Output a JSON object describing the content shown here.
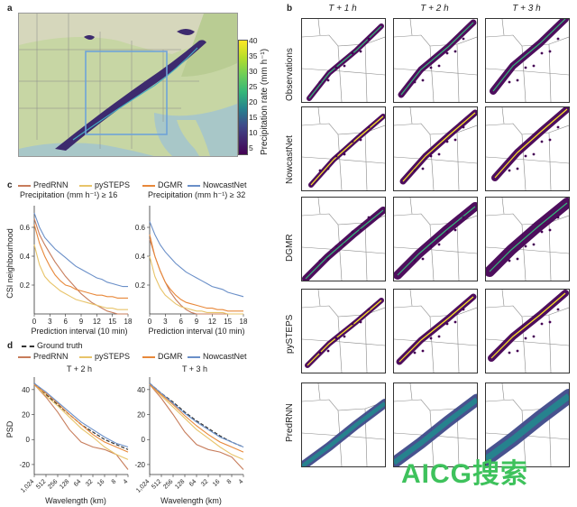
{
  "panel_labels": {
    "a": "a",
    "b": "b",
    "c": "c",
    "d": "d"
  },
  "colorbar": {
    "label": "Precipitation rate (mm h⁻¹)",
    "ticks": [
      "40",
      "35",
      "30",
      "25",
      "20",
      "15",
      "10",
      "5"
    ],
    "colors": [
      "#fde725",
      "#b5de2b",
      "#6ece58",
      "#35b779",
      "#1f9e89",
      "#26828e",
      "#31688e",
      "#3e4989",
      "#482878",
      "#440154"
    ]
  },
  "grid": {
    "columns": [
      "T + 1 h",
      "T + 2 h",
      "T + 3 h"
    ],
    "rows": [
      "Observations",
      "NowcastNet",
      "DGMR",
      "pySTEPS",
      "PredRNN"
    ]
  },
  "legend_c": {
    "items": [
      {
        "label": "PredRNN",
        "color": "#c77c5b"
      },
      {
        "label": "pySTEPS",
        "color": "#e8c46a"
      },
      {
        "label": "DGMR",
        "color": "#e8883a"
      },
      {
        "label": "NowcastNet",
        "color": "#6a8fc8"
      }
    ]
  },
  "legend_d": {
    "items": [
      {
        "label": "Ground truth",
        "color": "#333333",
        "dashed": true
      },
      {
        "label": "PredRNN",
        "color": "#c77c5b"
      },
      {
        "label": "pySTEPS",
        "color": "#e8c46a"
      },
      {
        "label": "DGMR",
        "color": "#e8883a"
      },
      {
        "label": "NowcastNet",
        "color": "#6a8fc8"
      }
    ]
  },
  "chart_data": [
    {
      "type": "line",
      "title": "Precipitation (mm h⁻¹) ≥ 16",
      "xlabel": "Prediction interval (10 min)",
      "ylabel": "CSI neighbourhood",
      "x": [
        0,
        1,
        2,
        3,
        4,
        5,
        6,
        7,
        8,
        9,
        10,
        11,
        12,
        13,
        14,
        15,
        16,
        17,
        18
      ],
      "xticks": [
        "0",
        "3",
        "6",
        "9",
        "12",
        "15",
        "18"
      ],
      "yticks": [
        "0.2",
        "0.4",
        "0.6"
      ],
      "xlim": [
        0,
        18
      ],
      "ylim": [
        0,
        0.75
      ],
      "series": [
        {
          "name": "PredRNN",
          "values": [
            0.66,
            0.55,
            0.48,
            0.42,
            0.36,
            0.31,
            0.26,
            0.22,
            0.18,
            0.14,
            0.11,
            0.08,
            0.06,
            0.04,
            0.02,
            0.01,
            0.0,
            0.0,
            0.0
          ]
        },
        {
          "name": "pySTEPS",
          "values": [
            0.48,
            0.34,
            0.26,
            0.22,
            0.19,
            0.16,
            0.14,
            0.12,
            0.1,
            0.09,
            0.08,
            0.07,
            0.06,
            0.05,
            0.04,
            0.04,
            0.03,
            0.03,
            0.03
          ]
        },
        {
          "name": "DGMR",
          "values": [
            0.62,
            0.49,
            0.4,
            0.33,
            0.27,
            0.23,
            0.2,
            0.19,
            0.17,
            0.16,
            0.15,
            0.14,
            0.13,
            0.13,
            0.12,
            0.12,
            0.11,
            0.11,
            0.11
          ]
        },
        {
          "name": "NowcastNet",
          "values": [
            0.7,
            0.6,
            0.53,
            0.49,
            0.45,
            0.42,
            0.39,
            0.36,
            0.33,
            0.31,
            0.29,
            0.27,
            0.25,
            0.24,
            0.22,
            0.21,
            0.2,
            0.19,
            0.19
          ]
        }
      ]
    },
    {
      "type": "line",
      "title": "Precipitation (mm h⁻¹) ≥ 32",
      "xlabel": "Prediction interval (10 min)",
      "ylabel": "",
      "x": [
        0,
        1,
        2,
        3,
        4,
        5,
        6,
        7,
        8,
        9,
        10,
        11,
        12,
        13,
        14,
        15,
        16,
        17,
        18
      ],
      "xticks": [
        "0",
        "3",
        "6",
        "9",
        "12",
        "15",
        "18"
      ],
      "yticks": [
        "0.2",
        "0.4",
        "0.6"
      ],
      "xlim": [
        0,
        18
      ],
      "ylim": [
        0,
        0.75
      ],
      "series": [
        {
          "name": "PredRNN",
          "values": [
            0.52,
            0.4,
            0.3,
            0.22,
            0.15,
            0.1,
            0.06,
            0.03,
            0.01,
            0.0,
            0.0,
            0.0,
            0.0,
            0.0,
            0.0,
            0.0,
            0.0,
            0.0,
            0.0
          ]
        },
        {
          "name": "pySTEPS",
          "values": [
            0.4,
            0.26,
            0.18,
            0.13,
            0.1,
            0.07,
            0.05,
            0.04,
            0.03,
            0.02,
            0.02,
            0.01,
            0.01,
            0.01,
            0.01,
            0.0,
            0.0,
            0.0,
            0.0
          ]
        },
        {
          "name": "DGMR",
          "values": [
            0.55,
            0.4,
            0.3,
            0.22,
            0.17,
            0.13,
            0.1,
            0.08,
            0.07,
            0.06,
            0.05,
            0.04,
            0.04,
            0.03,
            0.03,
            0.02,
            0.02,
            0.02,
            0.02
          ]
        },
        {
          "name": "NowcastNet",
          "values": [
            0.64,
            0.55,
            0.48,
            0.43,
            0.39,
            0.35,
            0.32,
            0.29,
            0.27,
            0.25,
            0.23,
            0.21,
            0.19,
            0.18,
            0.17,
            0.15,
            0.14,
            0.13,
            0.12
          ]
        }
      ]
    },
    {
      "type": "line",
      "title": "T + 2 h",
      "xlabel": "Wavelength (km)",
      "ylabel": "PSD",
      "x": [
        1024,
        512,
        256,
        128,
        64,
        32,
        16,
        8,
        4
      ],
      "xticks": [
        "1,024",
        "512",
        "256",
        "128",
        "64",
        "32",
        "16",
        "8",
        "4"
      ],
      "yticks": [
        "40",
        "20",
        "0",
        "-20"
      ],
      "ylim": [
        -28,
        50
      ],
      "series": [
        {
          "name": "Ground truth",
          "values": [
            45,
            36,
            28,
            20,
            12,
            6,
            0,
            -4,
            -8
          ]
        },
        {
          "name": "PredRNN",
          "values": [
            44,
            34,
            22,
            8,
            -2,
            -6,
            -8,
            -12,
            -24
          ]
        },
        {
          "name": "pySTEPS",
          "values": [
            44,
            35,
            27,
            18,
            9,
            2,
            -6,
            -12,
            -16
          ]
        },
        {
          "name": "DGMR",
          "values": [
            44,
            37,
            29,
            20,
            12,
            4,
            -2,
            -6,
            -10
          ]
        },
        {
          "name": "NowcastNet",
          "values": [
            45,
            38,
            30,
            22,
            14,
            8,
            2,
            -3,
            -6
          ]
        }
      ]
    },
    {
      "type": "line",
      "title": "T + 3 h",
      "xlabel": "Wavelength (km)",
      "ylabel": "",
      "x": [
        1024,
        512,
        256,
        128,
        64,
        32,
        16,
        8,
        4
      ],
      "xticks": [
        "1,024",
        "512",
        "256",
        "128",
        "64",
        "32",
        "16",
        "8",
        "4"
      ],
      "yticks": [
        "40",
        "20",
        "0",
        "-20"
      ],
      "ylim": [
        -28,
        50
      ],
      "series": [
        {
          "name": "Ground truth",
          "values": [
            45,
            37,
            30,
            22,
            15,
            9,
            3,
            -2,
            -6
          ]
        },
        {
          "name": "PredRNN",
          "values": [
            44,
            33,
            20,
            6,
            -4,
            -8,
            -10,
            -14,
            -24
          ]
        },
        {
          "name": "pySTEPS",
          "values": [
            44,
            35,
            26,
            17,
            8,
            1,
            -6,
            -12,
            -16
          ]
        },
        {
          "name": "DGMR",
          "values": [
            44,
            36,
            28,
            19,
            11,
            4,
            -2,
            -6,
            -10
          ]
        },
        {
          "name": "NowcastNet",
          "values": [
            45,
            37,
            29,
            21,
            14,
            8,
            2,
            -2,
            -6
          ]
        }
      ]
    }
  ],
  "watermark": "AICG搜索"
}
